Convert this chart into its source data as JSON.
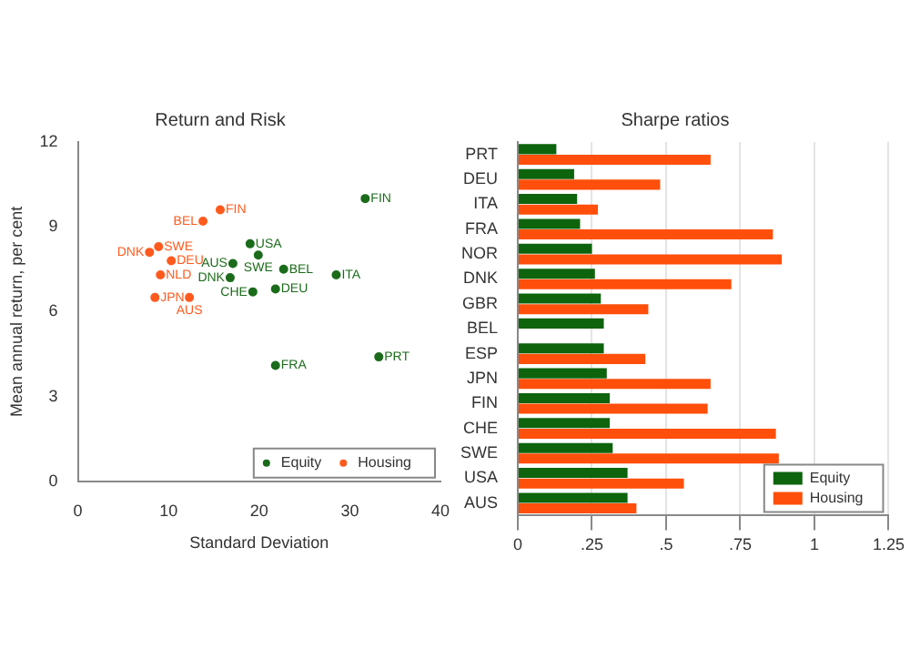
{
  "chart_data": [
    {
      "type": "scatter",
      "title": "Return and Risk",
      "xlabel": "Standard Deviation",
      "ylabel": "Mean annual return, per cent",
      "xlim": [
        0,
        40
      ],
      "xticks": [
        0,
        10,
        20,
        30,
        40
      ],
      "ylim": [
        0,
        12
      ],
      "yticks": [
        0,
        3,
        6,
        9,
        12
      ],
      "grid": false,
      "legend": "bottom right",
      "marker": "circle",
      "series": [
        {
          "name": "Equity",
          "color": "#1b6b1b",
          "x": [
            31.7,
            19.0,
            19.9,
            17.1,
            22.7,
            28.5,
            16.8,
            21.8,
            19.3,
            33.2,
            21.8
          ],
          "values": [
            10.0,
            8.4,
            8.0,
            7.7,
            7.5,
            7.3,
            7.2,
            6.8,
            6.7,
            4.4,
            4.1
          ],
          "value_labels": [
            "FIN",
            "USA",
            "SWE",
            "AUS",
            "BEL",
            "ITA",
            "DNK",
            "DEU",
            "CHE",
            "PRT",
            "FRA"
          ]
        },
        {
          "name": "Housing",
          "color": "#ff5a1e",
          "x": [
            15.7,
            13.8,
            8.9,
            7.9,
            10.3,
            9.1,
            8.5,
            12.3
          ],
          "values": [
            9.6,
            9.2,
            8.3,
            8.1,
            7.8,
            7.3,
            6.5,
            6.5
          ],
          "value_labels": [
            "FIN",
            "BEL",
            "SWE",
            "DNK",
            "DEU",
            "NLD",
            "JPN",
            "AUS"
          ]
        }
      ]
    },
    {
      "type": "bar",
      "orientation": "horizontal",
      "title": "Sharpe ratios",
      "categories": [
        "PRT",
        "DEU",
        "ITA",
        "FRA",
        "NOR",
        "DNK",
        "GBR",
        "BEL",
        "ESP",
        "JPN",
        "FIN",
        "CHE",
        "SWE",
        "USA",
        "AUS"
      ],
      "xlim": [
        0,
        1.25
      ],
      "xticks": [
        0,
        {
          "value": 0.25,
          "label": ".25"
        },
        {
          "value": 0.5,
          "label": ".5"
        },
        {
          "value": 0.75,
          "label": ".75"
        },
        1,
        1.25
      ],
      "grid": "x",
      "legend": "bottom right",
      "series": [
        {
          "name": "Equity",
          "color": "#0d640d",
          "values": [
            0.13,
            0.19,
            0.2,
            0.21,
            0.25,
            0.26,
            0.28,
            0.29,
            0.29,
            0.3,
            0.31,
            0.31,
            0.32,
            0.37,
            0.37
          ]
        },
        {
          "name": "Housing",
          "color": "#ff4f0a",
          "values": [
            0.65,
            0.48,
            0.27,
            0.86,
            0.89,
            0.72,
            0.44,
            null,
            0.43,
            0.65,
            0.64,
            0.87,
            0.88,
            0.56,
            0.4
          ]
        }
      ]
    }
  ]
}
